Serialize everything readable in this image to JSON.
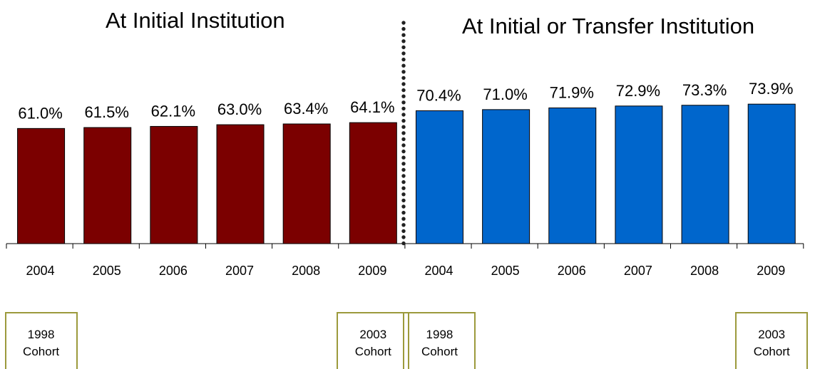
{
  "titles": {
    "initial": "At Initial Institution",
    "transfer": "At Initial or Transfer Institution"
  },
  "colors": {
    "initial": "#7b0000",
    "transfer": "#0066cc"
  },
  "chart_data": {
    "type": "bar",
    "groups": [
      {
        "name": "At Initial Institution",
        "color": "#7b0000",
        "categories": [
          "2004",
          "2005",
          "2006",
          "2007",
          "2008",
          "2009"
        ],
        "values": [
          61.0,
          61.5,
          62.1,
          63.0,
          63.4,
          64.1
        ],
        "labels": [
          "61.0%",
          "61.5%",
          "62.1%",
          "63.0%",
          "63.4%",
          "64.1%"
        ]
      },
      {
        "name": "At Initial or Transfer Institution",
        "color": "#0066cc",
        "categories": [
          "2004",
          "2005",
          "2006",
          "2007",
          "2008",
          "2009"
        ],
        "values": [
          70.4,
          71.0,
          71.9,
          72.9,
          73.3,
          73.9
        ],
        "labels": [
          "70.4%",
          "71.0%",
          "71.9%",
          "72.9%",
          "73.3%",
          "73.9%"
        ]
      }
    ],
    "cohort_annotations": [
      {
        "group": 0,
        "index": 0,
        "line1": "1998",
        "line2": "Cohort"
      },
      {
        "group": 0,
        "index": 5,
        "line1": "2003",
        "line2": "Cohort"
      },
      {
        "group": 1,
        "index": 0,
        "line1": "1998",
        "line2": "Cohort"
      },
      {
        "group": 1,
        "index": 5,
        "line1": "2003",
        "line2": "Cohort"
      }
    ]
  }
}
